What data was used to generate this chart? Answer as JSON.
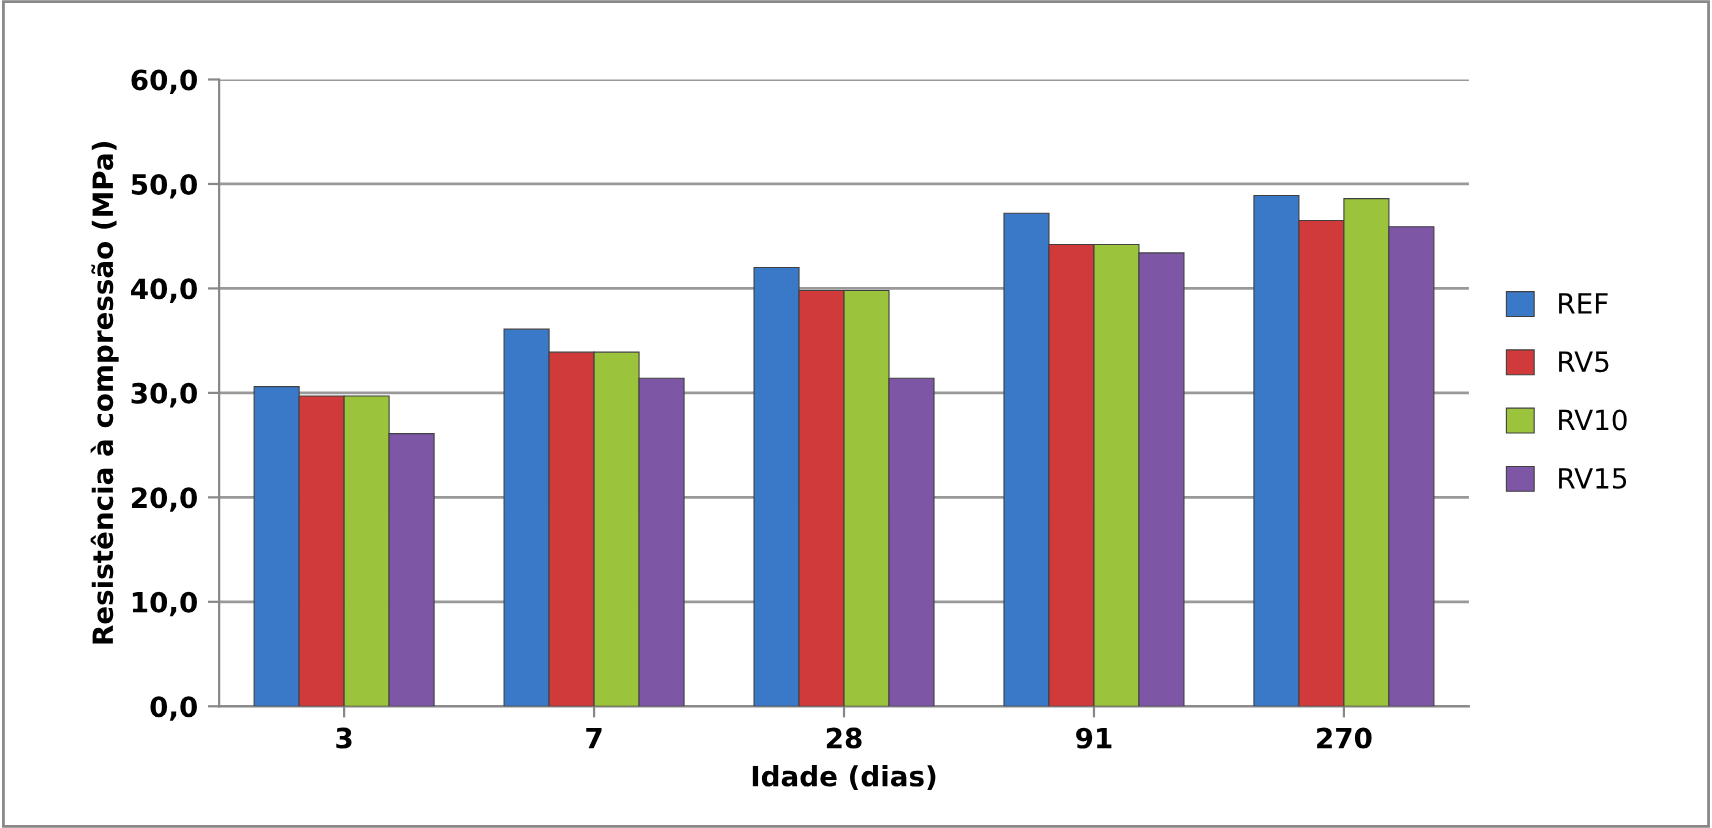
{
  "chart_data": {
    "type": "bar",
    "xlabel": "Idade (dias)",
    "ylabel": "Resistência à compressão (MPa)",
    "categories": [
      "3",
      "7",
      "28",
      "91",
      "270"
    ],
    "series": [
      {
        "name": "REF",
        "color": "#3a78c8",
        "values": [
          30.6,
          36.1,
          42.0,
          47.2,
          48.9
        ]
      },
      {
        "name": "RV5",
        "color": "#d03a3a",
        "values": [
          29.7,
          33.9,
          39.8,
          44.2,
          46.5
        ]
      },
      {
        "name": "RV10",
        "color": "#9bc43c",
        "values": [
          29.7,
          33.9,
          39.8,
          44.2,
          48.6
        ]
      },
      {
        "name": "RV15",
        "color": "#7e56a6",
        "values": [
          26.1,
          31.4,
          31.4,
          43.4,
          45.9
        ]
      }
    ],
    "ylim": [
      0,
      60
    ],
    "yticks": [
      {
        "value": 0,
        "label": "0,0"
      },
      {
        "value": 10,
        "label": "10,0"
      },
      {
        "value": 20,
        "label": "20,0"
      },
      {
        "value": 30,
        "label": "30,0"
      },
      {
        "value": 40,
        "label": "40,0"
      },
      {
        "value": 50,
        "label": "50,0"
      },
      {
        "value": 60,
        "label": "60,0"
      }
    ],
    "grid": "y",
    "legend": "right"
  }
}
